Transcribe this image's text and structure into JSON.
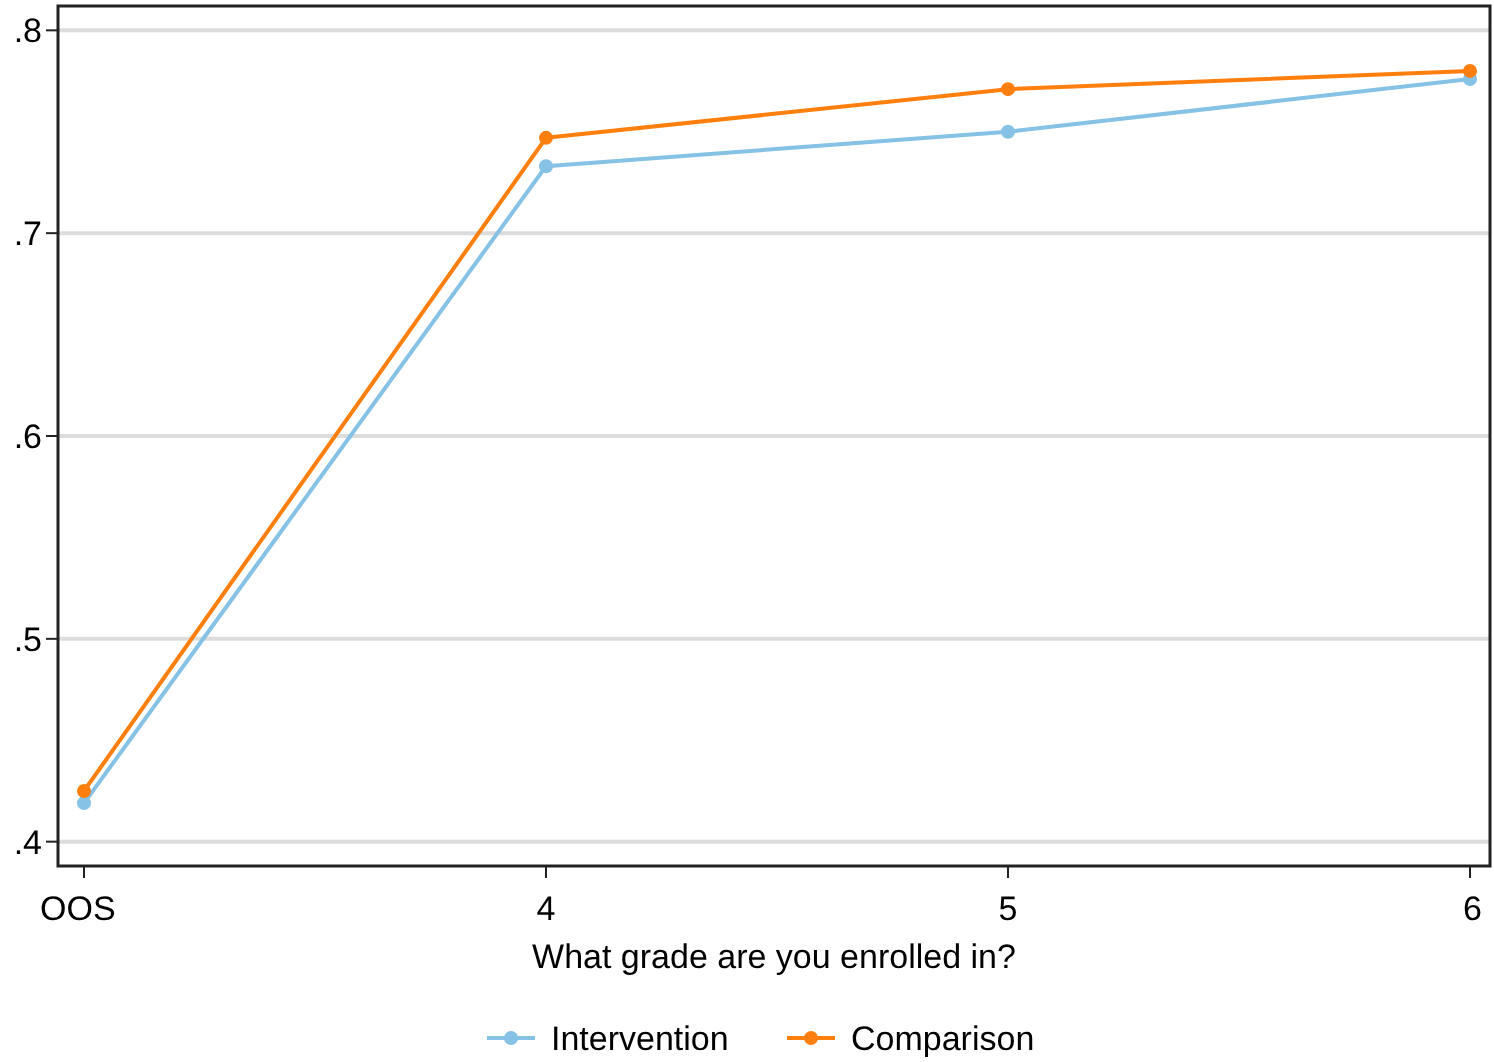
{
  "chart_data": {
    "type": "line",
    "xlabel": "What grade are you enrolled in?",
    "categories": [
      "OOS",
      "4",
      "5",
      "6"
    ],
    "series": [
      {
        "name": "Intervention",
        "color": "#86c1e6",
        "values": [
          0.419,
          0.733,
          0.75,
          0.776
        ]
      },
      {
        "name": "Comparison",
        "color": "#ff7f0e",
        "values": [
          0.425,
          0.747,
          0.771,
          0.78
        ]
      }
    ],
    "ylim": [
      0.388,
      0.812
    ],
    "yticks": [
      {
        "value": 0.4,
        "label": ".4"
      },
      {
        "value": 0.5,
        "label": ".5"
      },
      {
        "value": 0.6,
        "label": ".6"
      },
      {
        "value": 0.7,
        "label": ".7"
      },
      {
        "value": 0.8,
        "label": ".8"
      }
    ],
    "grid": "y",
    "legend": "bottom",
    "marker": "circle",
    "line_style": "solid"
  }
}
